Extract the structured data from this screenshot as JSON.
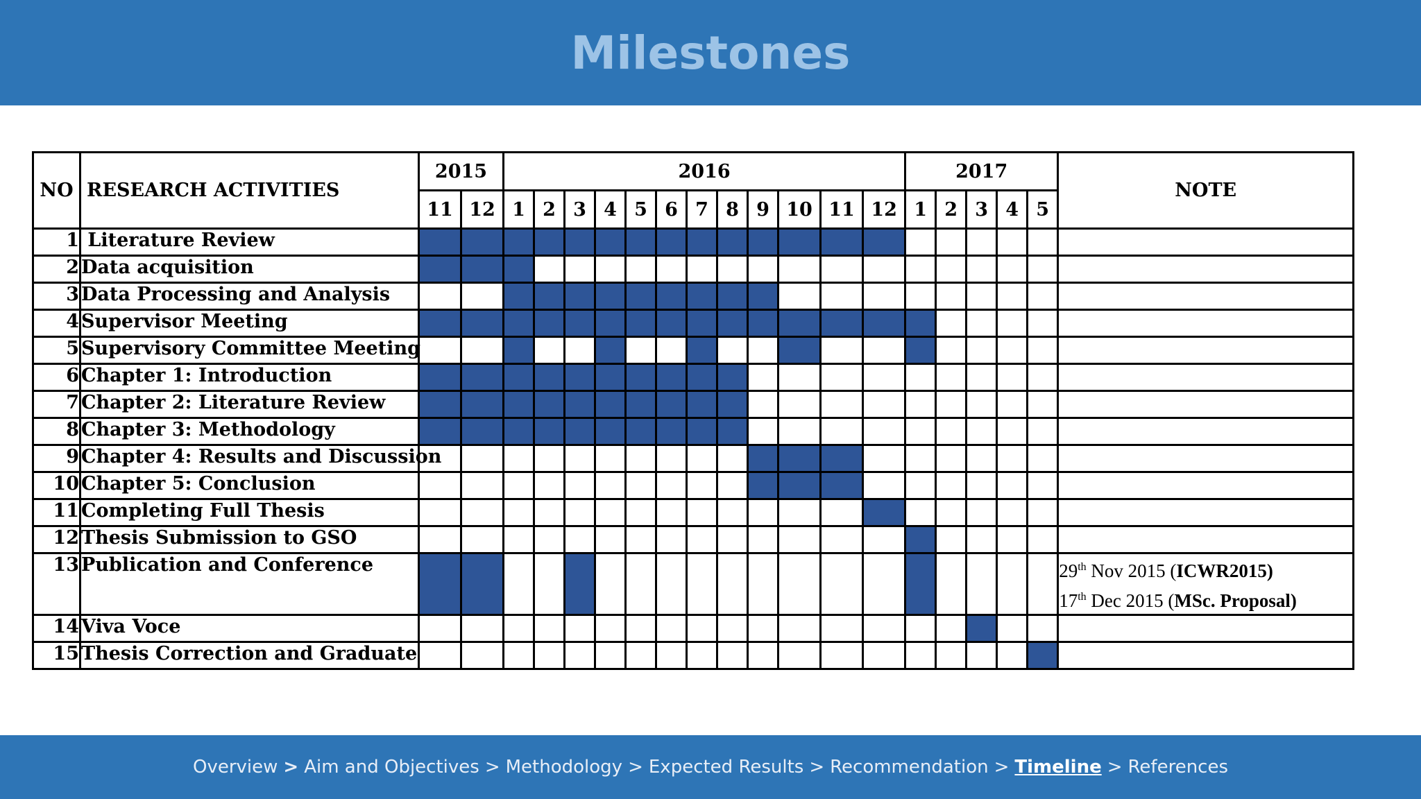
{
  "title": "Milestones",
  "table": {
    "no_header": "NO",
    "activities_header": "RESEARCH ACTIVITIES",
    "note_header": "NOTE",
    "years": [
      {
        "label": "2015",
        "span": 2
      },
      {
        "label": "2016",
        "span": 12
      },
      {
        "label": "2017",
        "span": 5
      }
    ],
    "months": [
      "11",
      "12",
      "1",
      "2",
      "3",
      "4",
      "5",
      "6",
      "7",
      "8",
      "9",
      "10",
      "11",
      "12",
      "1",
      "2",
      "3",
      "4",
      "5"
    ],
    "rows": [
      {
        "no": "1",
        "activity": " Literature Review",
        "cells": [
          1,
          1,
          1,
          1,
          1,
          1,
          1,
          1,
          1,
          1,
          1,
          1,
          1,
          1,
          0,
          0,
          0,
          0,
          0
        ]
      },
      {
        "no": "2",
        "activity": "Data acquisition",
        "cells": [
          1,
          1,
          1,
          0,
          0,
          0,
          0,
          0,
          0,
          0,
          0,
          0,
          0,
          0,
          0,
          0,
          0,
          0,
          0
        ]
      },
      {
        "no": "3",
        "activity": "Data Processing and Analysis",
        "cells": [
          0,
          0,
          1,
          1,
          1,
          1,
          1,
          1,
          1,
          1,
          1,
          0,
          0,
          0,
          0,
          0,
          0,
          0,
          0
        ]
      },
      {
        "no": "4",
        "activity": "Supervisor Meeting",
        "cells": [
          1,
          1,
          1,
          1,
          1,
          1,
          1,
          1,
          1,
          1,
          1,
          1,
          1,
          1,
          1,
          0,
          0,
          0,
          0
        ]
      },
      {
        "no": "5",
        "activity": "Supervisory Committee Meeting",
        "cells": [
          0,
          0,
          1,
          0,
          0,
          1,
          0,
          0,
          1,
          0,
          0,
          1,
          0,
          0,
          1,
          0,
          0,
          0,
          0
        ]
      },
      {
        "no": "6",
        "activity": "Chapter 1: Introduction",
        "cells": [
          1,
          1,
          1,
          1,
          1,
          1,
          1,
          1,
          1,
          1,
          0,
          0,
          0,
          0,
          0,
          0,
          0,
          0,
          0
        ]
      },
      {
        "no": "7",
        "activity": "Chapter 2: Literature Review",
        "cells": [
          1,
          1,
          1,
          1,
          1,
          1,
          1,
          1,
          1,
          1,
          0,
          0,
          0,
          0,
          0,
          0,
          0,
          0,
          0
        ]
      },
      {
        "no": "8",
        "activity": "Chapter 3: Methodology",
        "cells": [
          1,
          1,
          1,
          1,
          1,
          1,
          1,
          1,
          1,
          1,
          0,
          0,
          0,
          0,
          0,
          0,
          0,
          0,
          0
        ]
      },
      {
        "no": "9",
        "activity": "Chapter 4: Results and Discussion",
        "cells": [
          0,
          0,
          0,
          0,
          0,
          0,
          0,
          0,
          0,
          0,
          1,
          1,
          1,
          0,
          0,
          0,
          0,
          0,
          0
        ]
      },
      {
        "no": "10",
        "activity": "Chapter 5: Conclusion",
        "cells": [
          0,
          0,
          0,
          0,
          0,
          0,
          0,
          0,
          0,
          0,
          1,
          1,
          1,
          0,
          0,
          0,
          0,
          0,
          0
        ]
      },
      {
        "no": "11",
        "activity": "Completing Full Thesis",
        "cells": [
          0,
          0,
          0,
          0,
          0,
          0,
          0,
          0,
          0,
          0,
          0,
          0,
          0,
          1,
          0,
          0,
          0,
          0,
          0
        ]
      },
      {
        "no": "12",
        "activity": "Thesis Submission to GSO",
        "cells": [
          0,
          0,
          0,
          0,
          0,
          0,
          0,
          0,
          0,
          0,
          0,
          0,
          0,
          0,
          1,
          0,
          0,
          0,
          0
        ]
      },
      {
        "no": "13",
        "activity": "Publication and Conference",
        "cells": [
          1,
          1,
          0,
          0,
          1,
          0,
          0,
          0,
          0,
          0,
          0,
          0,
          0,
          0,
          1,
          0,
          0,
          0,
          0
        ],
        "note": [
          {
            "day": "29",
            "suffix": "th",
            "date_rest": " Nov 2015 (",
            "bold": "ICWR2015)",
            "tail": ""
          },
          {
            "day": "17",
            "suffix": "th",
            "date_rest": " Dec 2015 (",
            "bold": "MSc. Proposal)",
            "tail": ""
          }
        ]
      },
      {
        "no": "14",
        "activity": "Viva Voce",
        "cells": [
          0,
          0,
          0,
          0,
          0,
          0,
          0,
          0,
          0,
          0,
          0,
          0,
          0,
          0,
          0,
          0,
          1,
          0,
          0
        ]
      },
      {
        "no": "15",
        "activity": "Thesis Correction and Graduate",
        "cells": [
          0,
          0,
          0,
          0,
          0,
          0,
          0,
          0,
          0,
          0,
          0,
          0,
          0,
          0,
          0,
          0,
          0,
          0,
          1
        ]
      }
    ]
  },
  "footer": {
    "items": [
      {
        "label": "Overview",
        "current": false,
        "sep_after": ">",
        "sep_bold": true
      },
      {
        "label": "Aim and Objectives",
        "current": false,
        "sep_after": ">",
        "sep_bold": false
      },
      {
        "label": "Methodology",
        "current": false,
        "sep_after": ">",
        "sep_bold": false
      },
      {
        "label": "Expected Results",
        "current": false,
        "sep_after": ">",
        "sep_bold": false
      },
      {
        "label": "Recommendation",
        "current": false,
        "sep_after": ">",
        "sep_bold": false
      },
      {
        "label": "Timeline",
        "current": true,
        "sep_after": ">",
        "sep_bold": false
      },
      {
        "label": "References",
        "current": false,
        "sep_after": "",
        "sep_bold": false
      }
    ]
  },
  "colors": {
    "header_bg": "#2e75b6",
    "title": "#9dc3e6",
    "filled_cell": "#2e5597",
    "footer_text": "#e8eef7"
  }
}
